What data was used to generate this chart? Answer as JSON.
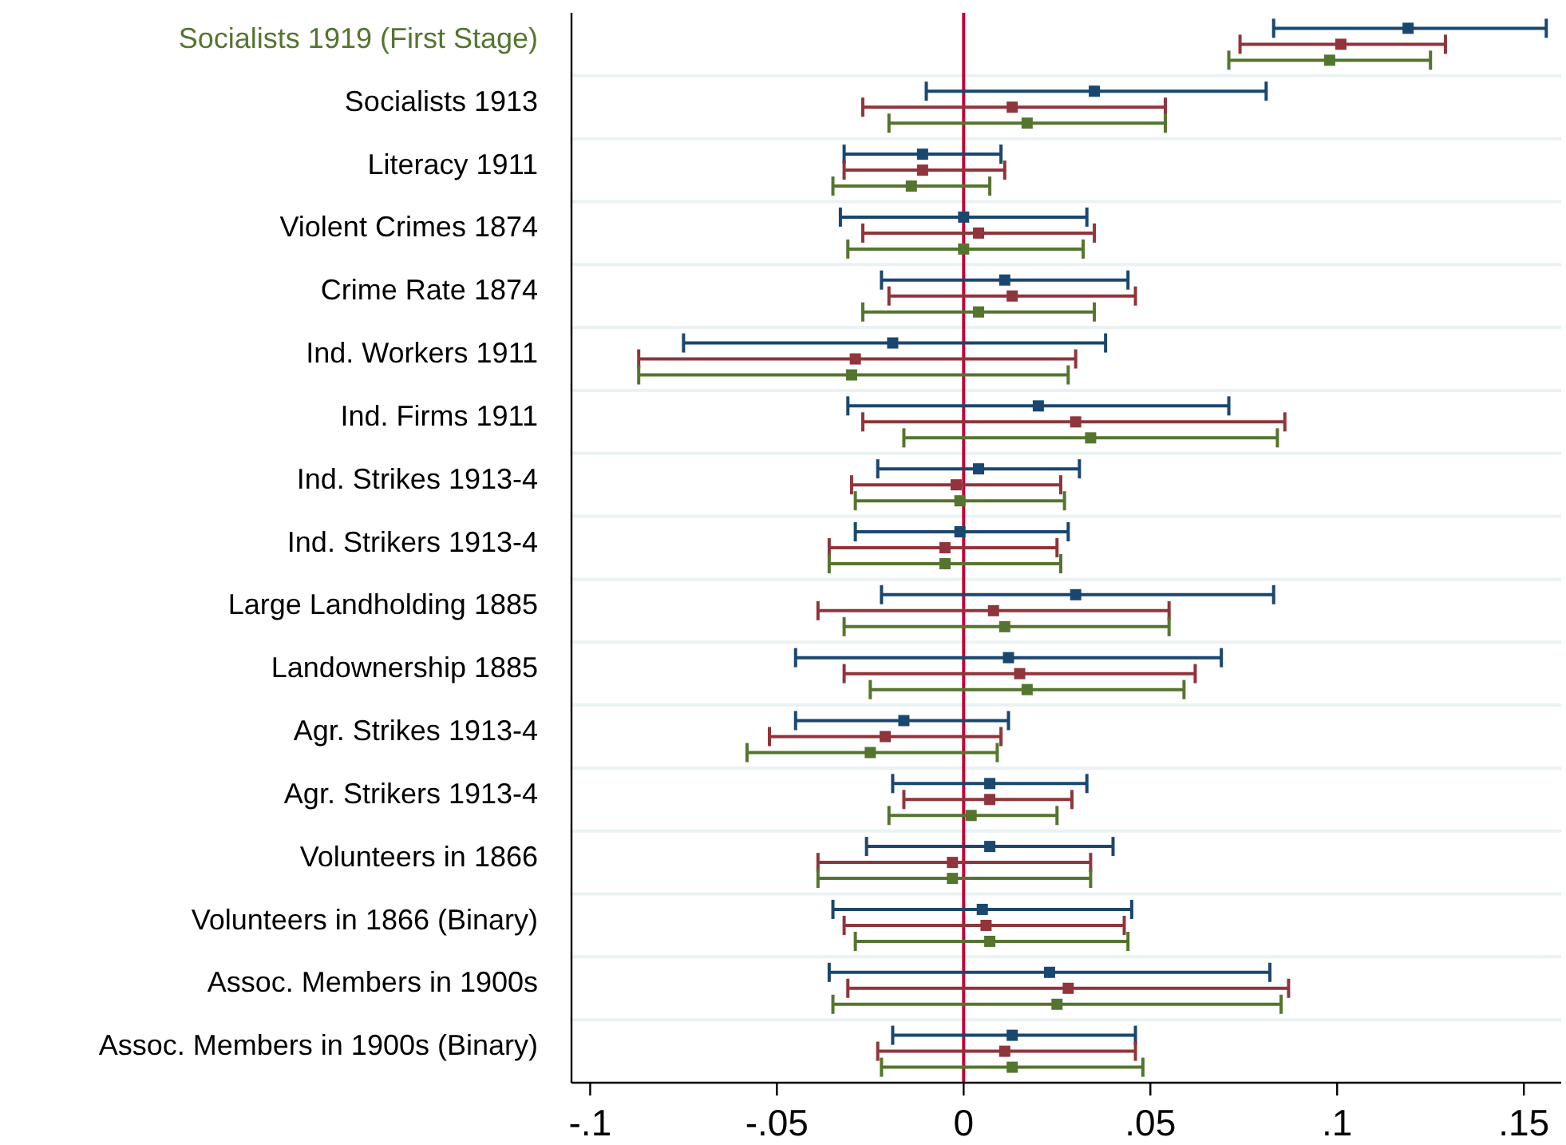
{
  "chart_data": {
    "type": "scatter",
    "orientation": "horizontal",
    "marker": "square",
    "grid": "y",
    "categories": [
      "Socialists 1919 (First Stage)",
      "Socialists 1913",
      "Literacy 1911",
      "Violent Crimes 1874",
      "Crime Rate 1874",
      "Ind. Workers 1911",
      "Ind. Firms 1911",
      "Ind. Strikes 1913-4",
      "Ind. Strikers 1913-4",
      "Large Landholding 1885",
      "Landownership 1885",
      "Agr. Strikes 1913-4",
      "Agr. Strikers 1913-4",
      "Volunteers in 1866",
      "Volunteers in 1866 (Binary)",
      "Assoc. Members in 1900s",
      "Assoc. Members in 1900s (Binary)"
    ],
    "xlim": [
      -0.105,
      0.16
    ],
    "xticks": [
      {
        "value": -0.1,
        "label": "-.1"
      },
      {
        "value": -0.05,
        "label": "-.05"
      },
      0,
      {
        "value": 0.05,
        "label": ".05"
      },
      {
        "value": 0.1,
        "label": ".1"
      },
      {
        "value": 0.15,
        "label": ".15"
      }
    ],
    "ref_lines": [
      {
        "axis": "x",
        "value": 0,
        "color": "#c10534"
      }
    ],
    "series": [
      {
        "color": "#1a476f",
        "values": [
          0.119,
          0.035,
          -0.011,
          0.0,
          0.011,
          -0.019,
          0.02,
          0.004,
          -0.001,
          0.03,
          0.012,
          -0.016,
          0.007,
          0.007,
          0.005,
          0.023,
          0.013
        ],
        "errors": [
          [
            0.083,
            0.156
          ],
          [
            -0.01,
            0.081
          ],
          [
            -0.032,
            0.01
          ],
          [
            -0.033,
            0.033
          ],
          [
            -0.022,
            0.044
          ],
          [
            -0.075,
            0.038
          ],
          [
            -0.031,
            0.071
          ],
          [
            -0.023,
            0.031
          ],
          [
            -0.029,
            0.028
          ],
          [
            -0.022,
            0.083
          ],
          [
            -0.045,
            0.069
          ],
          [
            -0.045,
            0.012
          ],
          [
            -0.019,
            0.033
          ],
          [
            -0.026,
            0.04
          ],
          [
            -0.035,
            0.045
          ],
          [
            -0.036,
            0.082
          ],
          [
            -0.019,
            0.046
          ]
        ]
      },
      {
        "color": "#90353b",
        "values": [
          0.101,
          0.013,
          -0.011,
          0.004,
          0.013,
          -0.029,
          0.03,
          -0.002,
          -0.005,
          0.008,
          0.015,
          -0.021,
          0.007,
          -0.003,
          0.006,
          0.028,
          0.011
        ],
        "errors": [
          [
            0.074,
            0.129
          ],
          [
            -0.027,
            0.054
          ],
          [
            -0.032,
            0.011
          ],
          [
            -0.027,
            0.035
          ],
          [
            -0.02,
            0.046
          ],
          [
            -0.087,
            0.03
          ],
          [
            -0.027,
            0.086
          ],
          [
            -0.03,
            0.026
          ],
          [
            -0.036,
            0.025
          ],
          [
            -0.039,
            0.055
          ],
          [
            -0.032,
            0.062
          ],
          [
            -0.052,
            0.01
          ],
          [
            -0.016,
            0.029
          ],
          [
            -0.039,
            0.034
          ],
          [
            -0.032,
            0.043
          ],
          [
            -0.031,
            0.087
          ],
          [
            -0.023,
            0.046
          ]
        ]
      },
      {
        "color": "#55752f",
        "values": [
          0.098,
          0.017,
          -0.014,
          0.0,
          0.004,
          -0.03,
          0.034,
          -0.001,
          -0.005,
          0.011,
          0.017,
          -0.025,
          0.002,
          -0.003,
          0.007,
          0.025,
          0.013
        ],
        "errors": [
          [
            0.071,
            0.125
          ],
          [
            -0.02,
            0.054
          ],
          [
            -0.035,
            0.007
          ],
          [
            -0.031,
            0.032
          ],
          [
            -0.027,
            0.035
          ],
          [
            -0.087,
            0.028
          ],
          [
            -0.016,
            0.084
          ],
          [
            -0.029,
            0.027
          ],
          [
            -0.036,
            0.026
          ],
          [
            -0.032,
            0.055
          ],
          [
            -0.025,
            0.059
          ],
          [
            -0.058,
            0.009
          ],
          [
            -0.02,
            0.025
          ],
          [
            -0.039,
            0.034
          ],
          [
            -0.029,
            0.044
          ],
          [
            -0.035,
            0.085
          ],
          [
            -0.022,
            0.048
          ]
        ]
      }
    ]
  }
}
